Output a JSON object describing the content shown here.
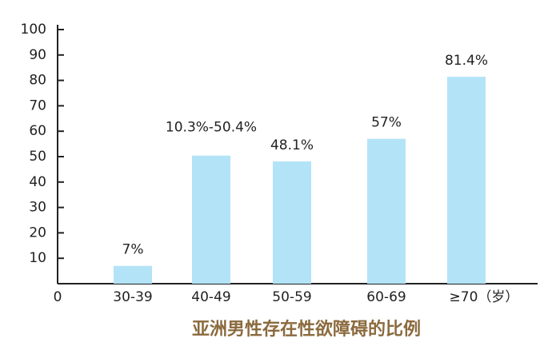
{
  "chart_data": {
    "type": "bar",
    "title": "亚洲男性存在性欲障碍的比例",
    "categories": [
      "30-39",
      "40-49",
      "50-59",
      "60-69",
      "≥70（岁）"
    ],
    "values": [
      7,
      50.4,
      48.1,
      57,
      81.4
    ],
    "value_labels": [
      "7%",
      "10.3%-50.4%",
      "48.1%",
      "57%",
      "81.4%"
    ],
    "color": "#b3e3f7",
    "ylim": [
      0,
      100
    ],
    "yticks": [
      0,
      10,
      20,
      30,
      40,
      50,
      60,
      70,
      80,
      90,
      100
    ]
  }
}
